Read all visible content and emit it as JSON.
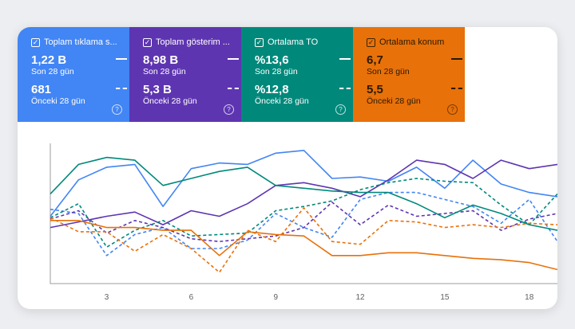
{
  "metrics": [
    {
      "label": "Toplam tıklama s...",
      "current": "1,22 B",
      "current_period": "Son 28 gün",
      "previous": "681",
      "previous_period": "Önceki 28 gün",
      "color": "#4285f4"
    },
    {
      "label": "Toplam gösterim ...",
      "current": "8,98 B",
      "current_period": "Son 28 gün",
      "previous": "5,3 B",
      "previous_period": "Önceki 28 gün",
      "color": "#5e35b1"
    },
    {
      "label": "Ortalama TO",
      "current": "%13,6",
      "current_period": "Son 28 gün",
      "previous": "%12,8",
      "previous_period": "Önceki 28 gün",
      "color": "#00897b"
    },
    {
      "label": "Ortalama konum",
      "current": "6,7",
      "current_period": "Son 28 gün",
      "previous": "5,5",
      "previous_period": "Önceki 28 gün",
      "color": "#e8710a"
    }
  ],
  "chart_data": {
    "type": "line",
    "x": [
      1,
      2,
      3,
      4,
      5,
      6,
      7,
      8,
      9,
      10,
      11,
      12,
      13,
      14,
      15,
      16,
      17,
      18,
      19
    ],
    "x_ticks": [
      "3",
      "6",
      "9",
      "12",
      "15",
      "18"
    ],
    "x_tick_values": [
      3,
      6,
      9,
      12,
      15,
      18
    ],
    "xlim": [
      1,
      19
    ],
    "ylim": [
      0,
      100
    ],
    "grid": false,
    "series": [
      {
        "color": "#4285f4",
        "style": "solid",
        "values": [
          48,
          74,
          83,
          85,
          55,
          82,
          86,
          85,
          93,
          95,
          75,
          76,
          73,
          83,
          68,
          88,
          71,
          65,
          62
        ]
      },
      {
        "color": "#4285f4",
        "style": "dashed",
        "values": [
          53,
          50,
          20,
          35,
          40,
          25,
          25,
          31,
          50,
          40,
          33,
          60,
          65,
          65,
          60,
          55,
          43,
          60,
          30
        ]
      },
      {
        "color": "#5e35b1",
        "style": "solid",
        "values": [
          40,
          44,
          48,
          51,
          42,
          52,
          48,
          57,
          70,
          72,
          68,
          62,
          74,
          88,
          85,
          75,
          88,
          82,
          85
        ]
      },
      {
        "color": "#5e35b1",
        "style": "dashed",
        "values": [
          46,
          52,
          36,
          45,
          40,
          32,
          30,
          32,
          34,
          40,
          58,
          42,
          56,
          48,
          50,
          52,
          38,
          46,
          50
        ]
      },
      {
        "color": "#00897b",
        "style": "solid",
        "values": [
          64,
          85,
          90,
          88,
          70,
          75,
          80,
          83,
          70,
          68,
          66,
          65,
          65,
          57,
          47,
          56,
          50,
          42,
          38
        ]
      },
      {
        "color": "#00897b",
        "style": "dashed",
        "values": [
          47,
          57,
          26,
          38,
          45,
          34,
          35,
          36,
          52,
          55,
          59,
          67,
          72,
          75,
          73,
          72,
          56,
          42,
          64
        ]
      },
      {
        "color": "#e8710a",
        "style": "solid",
        "values": [
          45,
          45,
          40,
          40,
          38,
          38,
          20,
          37,
          35,
          34,
          20,
          20,
          22,
          22,
          20,
          18,
          17,
          15,
          10
        ]
      },
      {
        "color": "#e8710a",
        "style": "dashed",
        "values": [
          47,
          37,
          37,
          23,
          35,
          25,
          8,
          38,
          30,
          54,
          30,
          28,
          45,
          44,
          40,
          42,
          40,
          43,
          42
        ]
      }
    ]
  }
}
